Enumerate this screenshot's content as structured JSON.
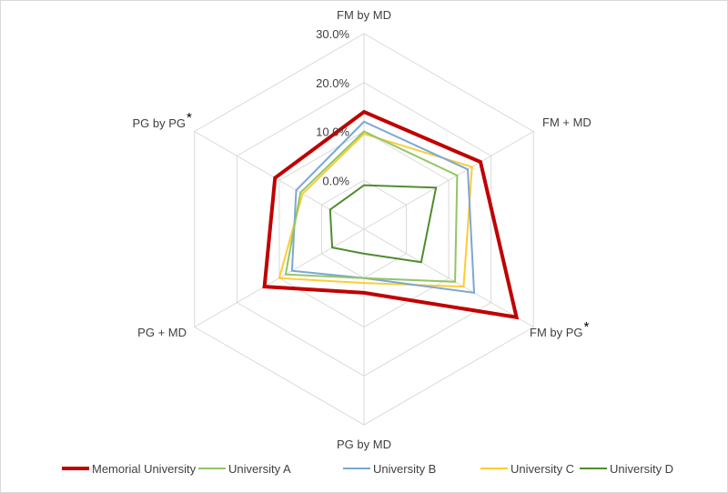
{
  "chart_data": {
    "type": "radar",
    "axes": [
      {
        "label": "FM by MD",
        "marker": ""
      },
      {
        "label": "FM + MD",
        "marker": ""
      },
      {
        "label": "FM by PG",
        "marker": "*"
      },
      {
        "label": "PG by MD",
        "marker": ""
      },
      {
        "label": "PG + MD",
        "marker": ""
      },
      {
        "label": "PG by PG",
        "marker": "*"
      }
    ],
    "ticks": [
      "0.0%",
      "10.0%",
      "20.0%",
      "30.0%"
    ],
    "tick_values": [
      0,
      10,
      20,
      30
    ],
    "rlim": [
      -10,
      30
    ],
    "grid": true,
    "legend_position": "bottom",
    "series": [
      {
        "name": "Memorial University",
        "color": "#c00000",
        "width": 4,
        "values": [
          14.0,
          17.5,
          26.0,
          3.0,
          13.5,
          11.0
        ]
      },
      {
        "name": "University A",
        "color": "#92c565",
        "width": 2,
        "values": [
          10.0,
          12.0,
          11.5,
          0.0,
          8.5,
          5.0
        ]
      },
      {
        "name": "University B",
        "color": "#7ba7d4",
        "width": 2,
        "values": [
          12.0,
          14.5,
          16.0,
          0.0,
          7.0,
          6.0
        ]
      },
      {
        "name": "University C",
        "color": "#ffcc33",
        "width": 2,
        "values": [
          9.5,
          15.5,
          13.5,
          1.0,
          10.0,
          4.5
        ]
      },
      {
        "name": "University D",
        "color": "#4e8c2e",
        "width": 2,
        "values": [
          -1.0,
          7.0,
          3.5,
          -5.0,
          -2.5,
          -2.0
        ]
      }
    ]
  }
}
